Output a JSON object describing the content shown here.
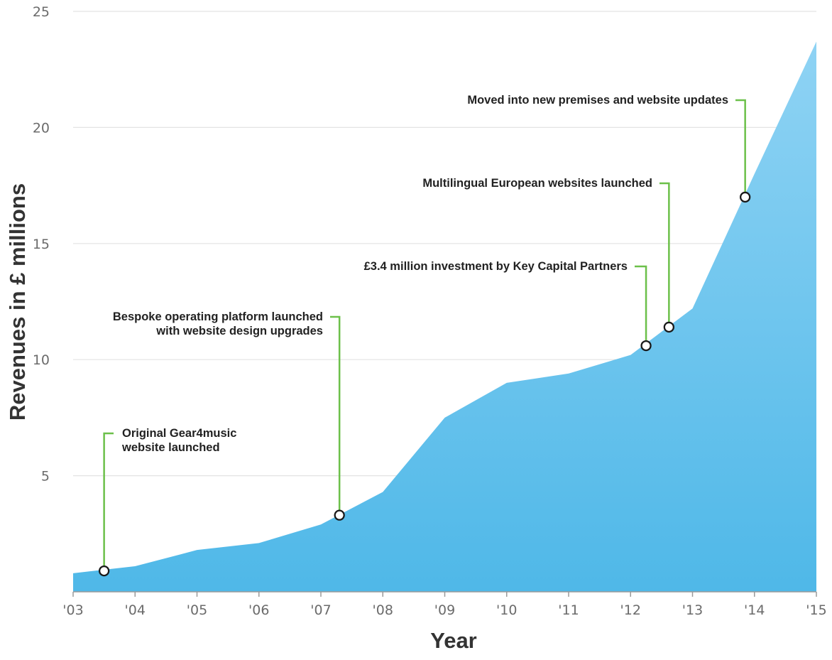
{
  "chart_data": {
    "type": "area",
    "title": "",
    "xlabel": "Year",
    "ylabel": "Revenues in £ millions",
    "x_ticks": [
      "'03",
      "'04",
      "'05",
      "'06",
      "'07",
      "'08",
      "'09",
      "'10",
      "'11",
      "'12",
      "'13",
      "'14",
      "'15"
    ],
    "y_ticks": [
      "5",
      "10",
      "15",
      "20",
      "25"
    ],
    "ylim": [
      0,
      25
    ],
    "grid": "horizontal",
    "series": [
      {
        "x": [
          2003,
          2004,
          2005,
          2006,
          2007,
          2008,
          2009,
          2010,
          2011,
          2012,
          2013,
          2014,
          2015
        ],
        "values": [
          0.8,
          1.1,
          1.8,
          2.1,
          2.9,
          4.3,
          7.5,
          9.0,
          9.4,
          10.2,
          12.2,
          18.0,
          23.7
        ]
      }
    ],
    "annotations": [
      {
        "id": "gear4music",
        "x": 2003.5,
        "y": 0.9,
        "lines": [
          "Original Gear4music",
          "website launched"
        ]
      },
      {
        "id": "platform",
        "x": 2007.3,
        "y": 3.3,
        "lines": [
          "Bespoke operating platform launched",
          "with website design upgrades"
        ]
      },
      {
        "id": "investment",
        "x": 2012.25,
        "y": 10.6,
        "lines": [
          "£3.4 million investment by Key Capital Partners"
        ]
      },
      {
        "id": "european",
        "x": 2012.62,
        "y": 11.4,
        "lines": [
          "Multilingual European websites launched"
        ]
      },
      {
        "id": "premises",
        "x": 2013.85,
        "y": 17.0,
        "lines": [
          "Moved into new premises and website updates"
        ]
      }
    ],
    "colors": {
      "area_top": "#8fd3f4",
      "area_bottom": "#4fb8e8",
      "callout": "#6cc04a",
      "grid": "#e3e3e3"
    }
  }
}
